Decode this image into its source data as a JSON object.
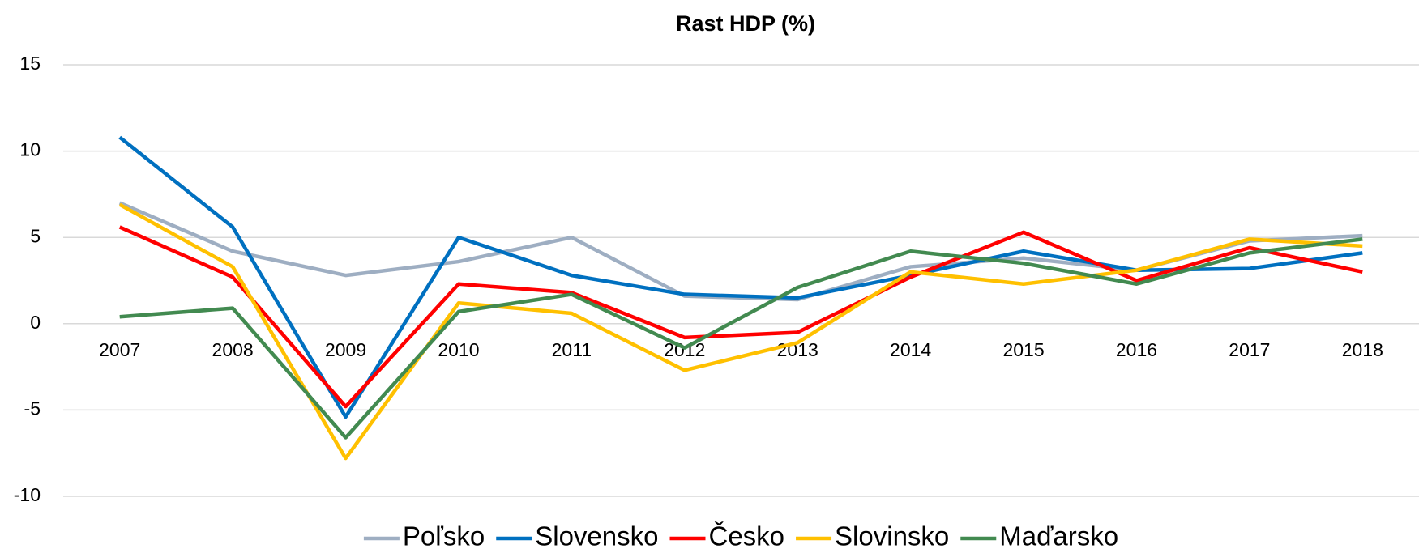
{
  "chart_data": {
    "type": "line",
    "title": "Rast HDP (%)",
    "categories": [
      "2007",
      "2008",
      "2009",
      "2010",
      "2011",
      "2012",
      "2013",
      "2014",
      "2015",
      "2016",
      "2017",
      "2018"
    ],
    "ylim": [
      -10,
      15
    ],
    "yticks": [
      -10,
      -5,
      0,
      5,
      10,
      15
    ],
    "grid": true,
    "legend": "bottom",
    "series": [
      {
        "name": "Poľsko",
        "color": "#9eaec2",
        "values": [
          7.0,
          4.2,
          2.8,
          3.6,
          5.0,
          1.6,
          1.4,
          3.3,
          3.8,
          3.1,
          4.8,
          5.1
        ]
      },
      {
        "name": "Slovensko",
        "color": "#0070c0",
        "values": [
          10.8,
          5.6,
          -5.4,
          5.0,
          2.8,
          1.7,
          1.5,
          2.8,
          4.2,
          3.1,
          3.2,
          4.1
        ]
      },
      {
        "name": "Česko",
        "color": "#ff0000",
        "values": [
          5.6,
          2.7,
          -4.8,
          2.3,
          1.8,
          -0.8,
          -0.5,
          2.7,
          5.3,
          2.5,
          4.4,
          3.0
        ]
      },
      {
        "name": "Slovinsko",
        "color": "#ffc000",
        "values": [
          6.9,
          3.3,
          -7.8,
          1.2,
          0.6,
          -2.7,
          -1.1,
          3.0,
          2.3,
          3.1,
          4.9,
          4.5
        ]
      },
      {
        "name": "Maďarsko",
        "color": "#428a50",
        "values": [
          0.4,
          0.9,
          -6.6,
          0.7,
          1.7,
          -1.4,
          2.1,
          4.2,
          3.5,
          2.3,
          4.1,
          4.9
        ]
      }
    ]
  }
}
